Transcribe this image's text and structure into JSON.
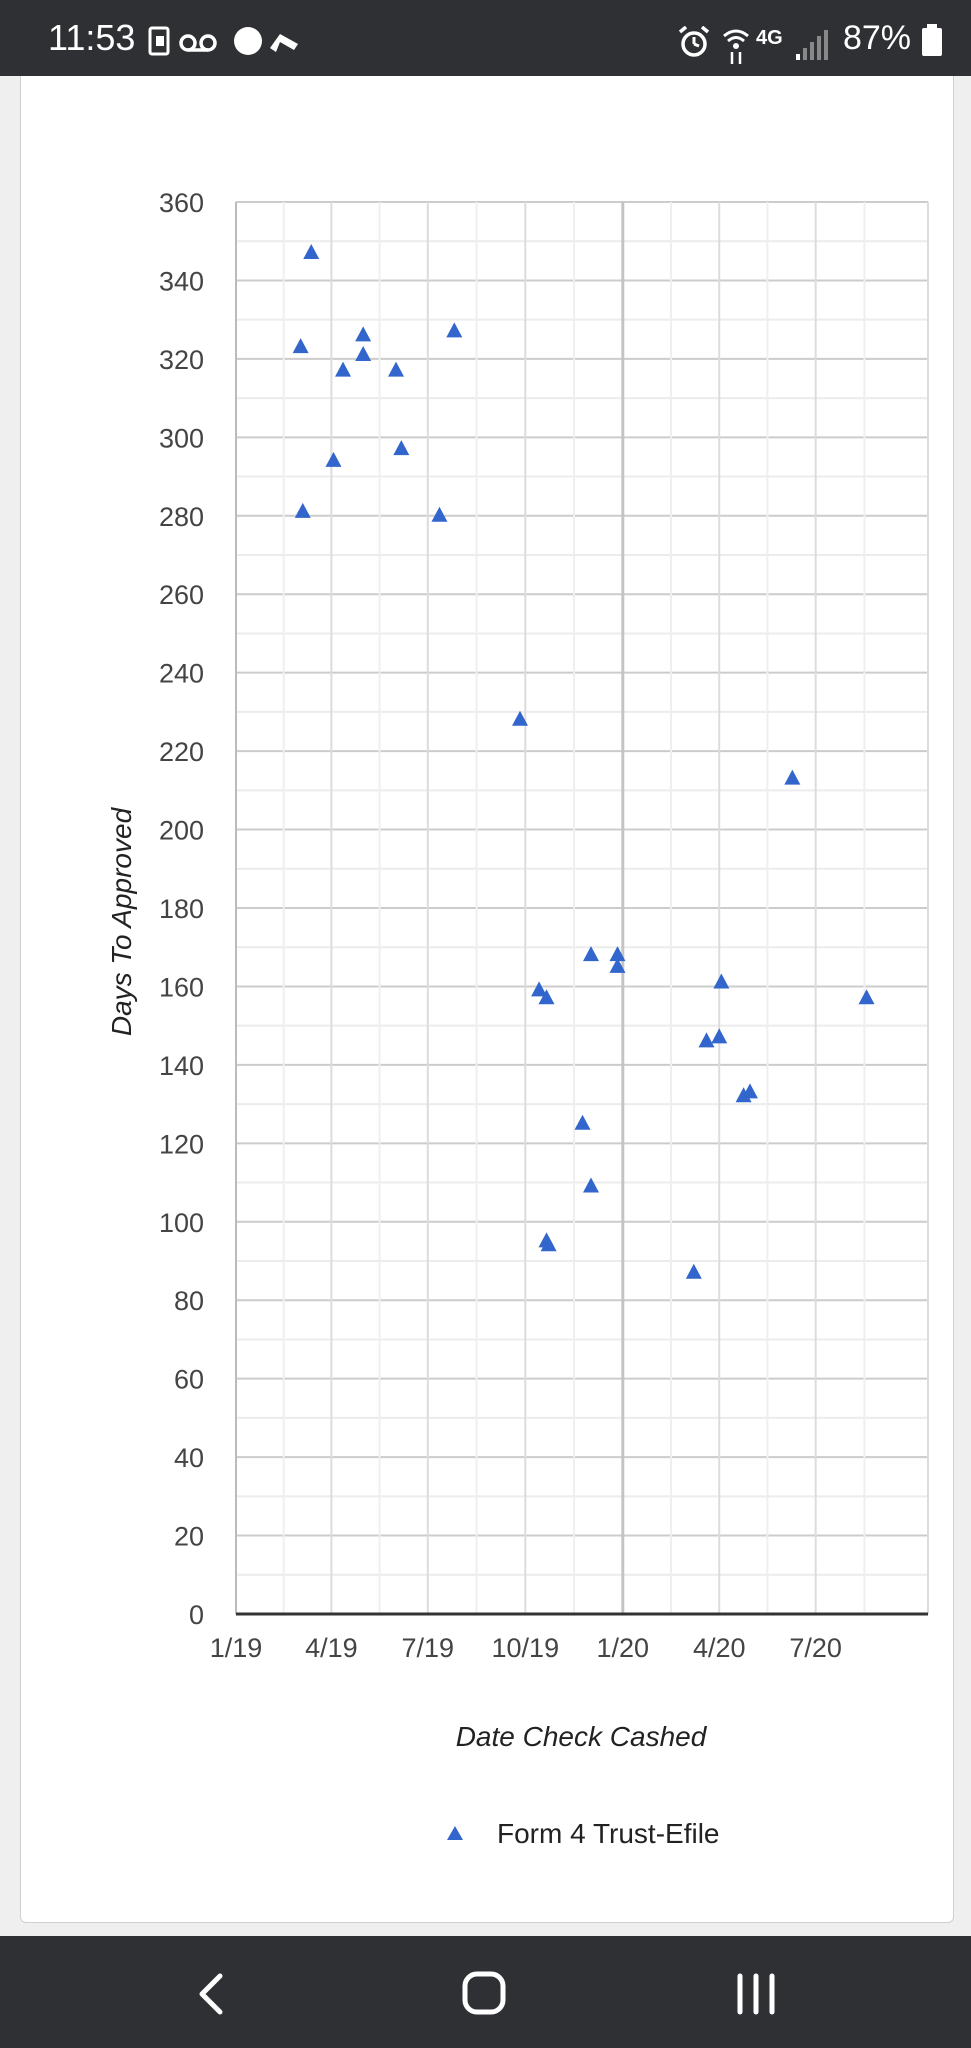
{
  "status_bar": {
    "time": "11:53",
    "network": "4G",
    "battery": "87%",
    "icons": [
      "tv-cast-icon",
      "voicemail-icon",
      "circle-icon",
      "navigation-icon",
      "alarm-icon",
      "wifi-calling-icon",
      "signal-icon",
      "battery-icon"
    ]
  },
  "nav_bar": {
    "icons": [
      "back-icon",
      "home-icon",
      "recents-icon"
    ]
  },
  "chart_data": {
    "type": "scatter",
    "title": "",
    "xlabel": "Date Check Cashed",
    "ylabel": "Days To Approved",
    "ylim": [
      0,
      360
    ],
    "yticks": [
      "0",
      "20",
      "40",
      "60",
      "80",
      "100",
      "120",
      "140",
      "160",
      "180",
      "200",
      "220",
      "240",
      "260",
      "280",
      "300",
      "320",
      "340",
      "360"
    ],
    "xlim": [
      "2019-01-01",
      "2020-10-15"
    ],
    "xticks": [
      {
        "date": "2019-01-01",
        "label": "1/19"
      },
      {
        "date": "2019-04-01",
        "label": "4/19"
      },
      {
        "date": "2019-07-01",
        "label": "7/19"
      },
      {
        "date": "2019-10-01",
        "label": "10/19"
      },
      {
        "date": "2020-01-01",
        "label": "1/20"
      },
      {
        "date": "2020-04-01",
        "label": "4/20"
      },
      {
        "date": "2020-07-01",
        "label": "7/20"
      }
    ],
    "grid": true,
    "legend": "bottom",
    "marker_color": "#3366cc",
    "series": [
      {
        "name": "Form 4 Trust-Efile",
        "marker": "triangle",
        "points": [
          {
            "x": "2019-03-03",
            "y": 323
          },
          {
            "x": "2019-03-05",
            "y": 281
          },
          {
            "x": "2019-03-13",
            "y": 347
          },
          {
            "x": "2019-04-03",
            "y": 294
          },
          {
            "x": "2019-04-12",
            "y": 317
          },
          {
            "x": "2019-05-01",
            "y": 326
          },
          {
            "x": "2019-05-01",
            "y": 321
          },
          {
            "x": "2019-06-01",
            "y": 317
          },
          {
            "x": "2019-06-06",
            "y": 297
          },
          {
            "x": "2019-07-12",
            "y": 280
          },
          {
            "x": "2019-07-26",
            "y": 327
          },
          {
            "x": "2019-09-26",
            "y": 228
          },
          {
            "x": "2019-10-14",
            "y": 159
          },
          {
            "x": "2019-10-21",
            "y": 157
          },
          {
            "x": "2019-10-21",
            "y": 95
          },
          {
            "x": "2019-10-23",
            "y": 94
          },
          {
            "x": "2019-11-24",
            "y": 125
          },
          {
            "x": "2019-12-02",
            "y": 109
          },
          {
            "x": "2019-12-02",
            "y": 168
          },
          {
            "x": "2019-12-27",
            "y": 168
          },
          {
            "x": "2019-12-27",
            "y": 165
          },
          {
            "x": "2020-03-08",
            "y": 87
          },
          {
            "x": "2020-03-20",
            "y": 146
          },
          {
            "x": "2020-04-01",
            "y": 147
          },
          {
            "x": "2020-04-03",
            "y": 161
          },
          {
            "x": "2020-04-24",
            "y": 132
          },
          {
            "x": "2020-04-30",
            "y": 133
          },
          {
            "x": "2020-06-09",
            "y": 213
          },
          {
            "x": "2020-08-18",
            "y": 157
          }
        ]
      }
    ]
  }
}
